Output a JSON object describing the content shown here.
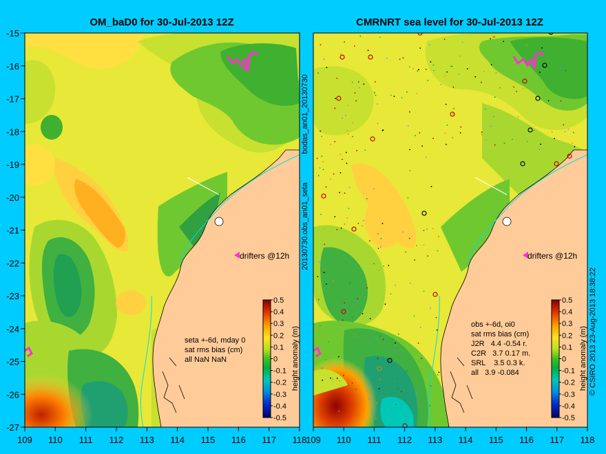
{
  "left_panel": {
    "title": "OM_baD0 for 30-Jul-2013 12Z",
    "stats": [
      "seta +-6d, mday 0",
      "sat rms bias (cm)",
      "all NaN NaN"
    ],
    "drifters_label": "drifters @12h"
  },
  "right_panel": {
    "title": "CMRNRT sea level  for 30-Jul-2013 12Z",
    "stats": [
      "obs +-6d, oi0",
      "sat rms bias (cm)",
      "J2R   4.4 -0.54 r.",
      "C2R   3.7 0.17 m.",
      "SRL    3.5 0.3 k.",
      "all   3.9 -0.084"
    ],
    "drifters_label": "drifters @12h"
  },
  "middle_labels": [
    "bodas_an01_20130730",
    "20130730.obs_an01_seta"
  ],
  "colorbar": {
    "title": "height anomaly (m)",
    "ticks": [
      "0.5",
      "0.4",
      "0.3",
      "0.2",
      "0.1",
      "0",
      "-0.1",
      "-0.2",
      "-0.3",
      "-0.4",
      "-0.5"
    ]
  },
  "axes": {
    "lat_ticks": [
      "-15",
      "-16",
      "-17",
      "-18",
      "-19",
      "-20",
      "-21",
      "-22",
      "-23",
      "-24",
      "-25",
      "-26",
      "-27"
    ],
    "left_lon_ticks": [
      "109",
      "110",
      "111",
      "112",
      "113",
      "114",
      "115",
      "116",
      "117",
      "118"
    ],
    "right_lon_ticks": [
      "109",
      "110",
      "111",
      "112",
      "113",
      "114",
      "115",
      "116",
      "117",
      "118"
    ]
  },
  "credit": "© CSIRO 2013   23-Aug-2013 18:38:22",
  "colors": {
    "background": "#00ccff",
    "land": "#ffcc99",
    "drifters": "#ff33cc"
  }
}
